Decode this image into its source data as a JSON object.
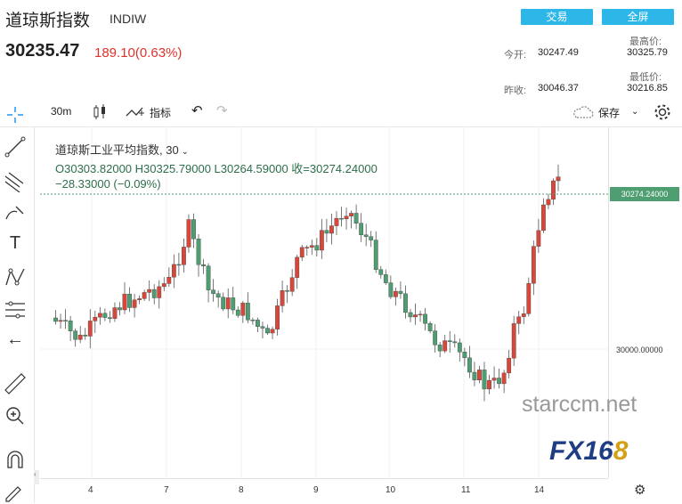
{
  "header": {
    "title": "道琼斯指数",
    "code": "INDIW",
    "trade_btn": "交易",
    "fullscreen_btn": "全屏",
    "price": "30235.47",
    "change": "189.10(0.63%)",
    "open_label": "今开:",
    "open_value": "30247.49",
    "prev_label": "昨收:",
    "prev_value": "30046.37",
    "high_label": "最高价:",
    "high_value": "30325.79",
    "low_label": "最低价:",
    "low_value": "30216.85"
  },
  "toolbar": {
    "interval": "30m",
    "indicators": "指标",
    "save": "保存"
  },
  "legend": {
    "title": "道琼斯工业平均指数, 30",
    "ohlc": "O30303.82000  H30325.79000  L30264.59000  收=30274.24000",
    "change": "−28.33000 (−0.09%)"
  },
  "axis": {
    "x_labels": [
      "4",
      "7",
      "8",
      "9",
      "10",
      "11",
      "14"
    ],
    "y_label": "30000.00000",
    "last_price_tag": "30274.24000"
  },
  "watermark": "starccm.net",
  "logo": "FX168",
  "colors": {
    "up": "#d9473a",
    "down": "#4e9e72",
    "accent": "#2db7e8"
  },
  "chart_data": {
    "type": "candlestick",
    "x_ticks": [
      "4",
      "7",
      "8",
      "9",
      "10",
      "11",
      "14"
    ],
    "last_close": 30274.24,
    "y_tick": 30000,
    "candles_desc": "30-minute candles of Dow Jones Industrial Average over trading days 4–14"
  }
}
